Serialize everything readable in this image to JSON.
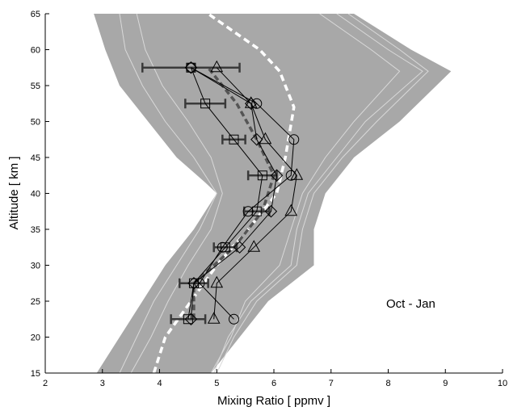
{
  "chart_data": {
    "type": "line",
    "title": "",
    "xlabel": "Mixing Ratio  [ ppmv ]",
    "ylabel": "Altitude  [ km ]",
    "xlim": [
      2,
      10
    ],
    "ylim": [
      15,
      65
    ],
    "xticks": [
      2,
      3,
      4,
      5,
      6,
      7,
      8,
      9,
      10
    ],
    "yticks": [
      15,
      20,
      25,
      30,
      35,
      40,
      45,
      50,
      55,
      60,
      65
    ],
    "grid": false,
    "annotation": "Oct - Jan",
    "colors": {
      "envelope": "#a8a8a8",
      "inner_lines": "#d9d9d9",
      "white_dashed": "#ffffff",
      "grey_dashed": "#555555",
      "profiles": "#000000",
      "errorbars": "#3a3a3a"
    },
    "envelope": {
      "left": [
        [
          2.9,
          15
        ],
        [
          3.3,
          20
        ],
        [
          3.7,
          25
        ],
        [
          4.1,
          30
        ],
        [
          4.6,
          35
        ],
        [
          5.0,
          40
        ],
        [
          4.8,
          41.5
        ],
        [
          4.3,
          45
        ],
        [
          3.8,
          50
        ],
        [
          3.3,
          55
        ],
        [
          3.05,
          60
        ],
        [
          2.85,
          65
        ]
      ],
      "right": [
        [
          4.9,
          15
        ],
        [
          5.4,
          20
        ],
        [
          5.9,
          25
        ],
        [
          6.7,
          30
        ],
        [
          6.7,
          35
        ],
        [
          6.9,
          40
        ],
        [
          7.4,
          45
        ],
        [
          8.2,
          50
        ],
        [
          9.1,
          57
        ],
        [
          8.4,
          60
        ],
        [
          7.4,
          65
        ]
      ]
    },
    "inner_lines": [
      [
        [
          3.3,
          15
        ],
        [
          3.6,
          20
        ],
        [
          3.9,
          25
        ],
        [
          4.3,
          30
        ],
        [
          4.7,
          35
        ],
        [
          5.0,
          40
        ],
        [
          4.6,
          45
        ],
        [
          4.1,
          50
        ],
        [
          3.7,
          55
        ],
        [
          3.4,
          60
        ],
        [
          3.3,
          65
        ]
      ],
      [
        [
          4.95,
          15
        ],
        [
          5.2,
          20
        ],
        [
          5.6,
          25
        ],
        [
          6.3,
          30
        ],
        [
          6.4,
          35
        ],
        [
          6.6,
          40
        ],
        [
          7.1,
          45
        ],
        [
          7.6,
          50
        ],
        [
          8.6,
          57
        ],
        [
          8.0,
          60
        ],
        [
          7.1,
          65
        ]
      ],
      [
        [
          5.0,
          15
        ],
        [
          5.3,
          20
        ],
        [
          5.7,
          25
        ],
        [
          6.4,
          30
        ],
        [
          6.5,
          35
        ],
        [
          6.7,
          40
        ],
        [
          7.2,
          45
        ],
        [
          7.8,
          50
        ],
        [
          8.7,
          57
        ],
        [
          8.2,
          60
        ],
        [
          7.3,
          65
        ]
      ],
      [
        [
          3.5,
          15
        ],
        [
          3.85,
          20
        ],
        [
          4.15,
          25
        ],
        [
          4.5,
          30
        ],
        [
          4.9,
          35
        ],
        [
          5.1,
          40
        ],
        [
          4.9,
          45
        ],
        [
          4.5,
          50
        ],
        [
          4.05,
          55
        ],
        [
          3.75,
          60
        ],
        [
          3.6,
          65
        ]
      ],
      [
        [
          4.9,
          15
        ],
        [
          5.25,
          20
        ],
        [
          5.5,
          25
        ],
        [
          6.1,
          30
        ],
        [
          6.3,
          35
        ],
        [
          6.5,
          40
        ],
        [
          6.9,
          45
        ],
        [
          7.4,
          50
        ],
        [
          8.2,
          57
        ],
        [
          7.7,
          60
        ],
        [
          6.8,
          65
        ]
      ]
    ],
    "series": [
      {
        "style": "white-dashed",
        "points": [
          [
            3.9,
            15
          ],
          [
            4.1,
            20
          ],
          [
            4.55,
            25
          ],
          [
            5.0,
            30
          ],
          [
            5.55,
            35
          ],
          [
            6.05,
            40
          ],
          [
            6.2,
            45
          ],
          [
            6.35,
            52
          ],
          [
            6.1,
            57
          ],
          [
            5.75,
            60
          ],
          [
            4.85,
            65
          ]
        ]
      },
      {
        "style": "grey-dashed",
        "points": [
          [
            4.6,
            22.5
          ],
          [
            4.6,
            27.5
          ],
          [
            5.3,
            32.5
          ],
          [
            5.8,
            37.5
          ],
          [
            6.0,
            42.5
          ],
          [
            5.7,
            47.5
          ],
          [
            5.35,
            52.5
          ],
          [
            4.85,
            57.5
          ]
        ]
      },
      {
        "marker": "square",
        "points": [
          [
            4.5,
            22.5
          ],
          [
            4.6,
            27.5
          ],
          [
            5.15,
            32.5
          ],
          [
            5.7,
            37.5
          ],
          [
            5.8,
            42.5
          ],
          [
            5.3,
            47.5
          ],
          [
            4.8,
            52.5
          ],
          [
            4.55,
            57.5
          ]
        ],
        "xerr": [
          0.3,
          0.25,
          0.2,
          0.22,
          0.25,
          0.2,
          0.35,
          0.85
        ]
      },
      {
        "marker": "circle",
        "points": [
          [
            5.3,
            22.5
          ],
          [
            4.7,
            27.5
          ],
          [
            5.1,
            32.5
          ],
          [
            5.55,
            37.5
          ],
          [
            6.3,
            42.5
          ],
          [
            6.35,
            47.5
          ],
          [
            5.7,
            52.5
          ],
          [
            4.55,
            57.5
          ]
        ]
      },
      {
        "marker": "diamond",
        "points": [
          [
            4.55,
            22.5
          ],
          [
            4.6,
            27.5
          ],
          [
            5.4,
            32.5
          ],
          [
            5.95,
            37.5
          ],
          [
            6.05,
            42.5
          ],
          [
            5.7,
            47.5
          ],
          [
            5.6,
            52.5
          ],
          [
            4.55,
            57.5
          ]
        ]
      },
      {
        "marker": "triangle",
        "points": [
          [
            4.95,
            22.5
          ],
          [
            5.0,
            27.5
          ],
          [
            5.65,
            32.5
          ],
          [
            6.3,
            37.5
          ],
          [
            6.4,
            42.5
          ],
          [
            5.85,
            47.5
          ],
          [
            5.6,
            52.5
          ],
          [
            5.0,
            57.5
          ]
        ]
      }
    ]
  }
}
